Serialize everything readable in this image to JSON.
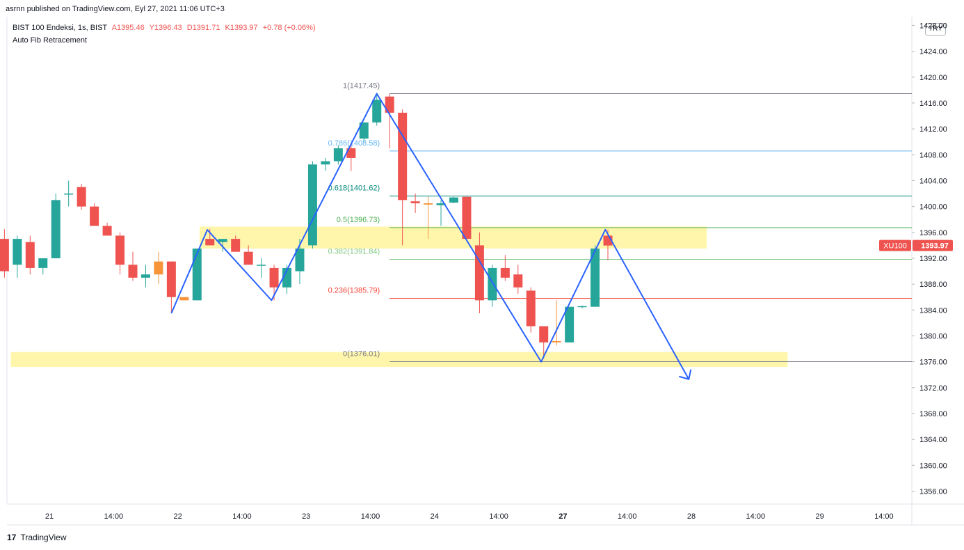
{
  "header": {
    "published": "asrnn published on TradingView.com, Eyl 27, 2021 11:06 UTC+3",
    "symbol": "BIST 100 Endeksi, 1s, BIST",
    "open": "A1395.46",
    "high": "Y1396.43",
    "low": "D1391.71",
    "close": "K1393.97",
    "change": "+0.78 (+0.06%)",
    "indicator": "Auto Fib Retracement",
    "currency": "TRY"
  },
  "footer": {
    "logo_glyph": "17",
    "brand": "TradingView"
  },
  "colors": {
    "up": "#26a69a",
    "down": "#ef5350",
    "orange": "#f7943a",
    "zone": "#fff59d",
    "drawing": "#2962ff",
    "price_label": "#ef5350"
  },
  "chart_data": {
    "type": "candlestick",
    "ylim": [
      1352.5,
      1428.0
    ],
    "yticks": [
      "1428.00",
      "1424.00",
      "1420.00",
      "1416.00",
      "1412.00",
      "1408.00",
      "1404.00",
      "1400.00",
      "1396.00",
      "1392.00",
      "1388.00",
      "1384.00",
      "1380.00",
      "1376.00",
      "1372.00",
      "1368.00",
      "1364.00",
      "1360.00",
      "1356.00"
    ],
    "xticks": [
      "21",
      "14:00",
      "22",
      "14:00",
      "23",
      "14:00",
      "24",
      "14:00",
      "27",
      "14:00",
      "28",
      "14:00",
      "29",
      "14:00"
    ],
    "xtick_bars": [
      0,
      5,
      10,
      15,
      20,
      25,
      30,
      35,
      40,
      45,
      50,
      55,
      60,
      65
    ],
    "last_price": {
      "symbol": "XU100",
      "value": "1393.97"
    },
    "candles": [
      [
        -3.5,
        1395.0,
        1396.5,
        1389.0,
        1390.0
      ],
      [
        -2.5,
        1391.0,
        1395.5,
        1389.0,
        1395.0
      ],
      [
        -1.5,
        1394.5,
        1395.5,
        1389.5,
        1390.5
      ],
      [
        -0.5,
        1390.5,
        1392.0,
        1389.5,
        1392.0
      ],
      [
        0.5,
        1392.0,
        1402.0,
        1392.0,
        1401.0
      ],
      [
        1.5,
        1402.0,
        1404.0,
        1400.0,
        1402.0
      ],
      [
        2.5,
        1403.0,
        1403.5,
        1399.5,
        1400.0
      ],
      [
        3.5,
        1400.0,
        1400.5,
        1397.0,
        1397.0
      ],
      [
        4.5,
        1397.0,
        1397.5,
        1395.5,
        1395.5
      ],
      [
        5.5,
        1395.5,
        1396.0,
        1389.5,
        1391.0
      ],
      [
        6.5,
        1391.0,
        1393.0,
        1388.5,
        1389.0
      ],
      [
        7.5,
        1389.0,
        1391.0,
        1387.5,
        1389.5
      ],
      [
        8.5,
        1389.5,
        1393.0,
        1388.0,
        1391.5
      ],
      [
        9.5,
        1391.5,
        1391.5,
        1383.5,
        1386.0
      ],
      [
        10.5,
        1386.0,
        1386.0,
        1385.5,
        1385.5
      ],
      [
        11.5,
        1385.5,
        1393.5,
        1385.5,
        1393.5
      ],
      [
        12.5,
        1395.0,
        1396.5,
        1394.0,
        1394.0
      ],
      [
        13.5,
        1394.5,
        1395.0,
        1393.0,
        1395.0
      ],
      [
        14.5,
        1395.0,
        1395.5,
        1393.0,
        1393.0
      ],
      [
        15.5,
        1393.0,
        1394.0,
        1391.0,
        1391.0
      ],
      [
        16.5,
        1391.0,
        1392.0,
        1389.0,
        1391.0
      ],
      [
        17.5,
        1390.5,
        1391.0,
        1385.5,
        1387.5
      ],
      [
        18.5,
        1387.5,
        1391.0,
        1386.5,
        1390.5
      ],
      [
        19.5,
        1390.0,
        1395.0,
        1388.0,
        1393.5
      ],
      [
        20.5,
        1394.0,
        1407.0,
        1393.5,
        1406.5
      ],
      [
        21.5,
        1406.5,
        1407.5,
        1405.5,
        1407.0
      ],
      [
        22.5,
        1407.0,
        1409.5,
        1406.5,
        1409.0
      ],
      [
        23.5,
        1409.0,
        1409.5,
        1405.5,
        1407.5
      ],
      [
        24.5,
        1410.5,
        1413.0,
        1410.0,
        1413.0
      ],
      [
        25.5,
        1413.0,
        1417.45,
        1412.5,
        1416.5
      ],
      [
        26.5,
        1417.0,
        1417.45,
        1409.0,
        1414.5
      ],
      [
        27.5,
        1414.5,
        1415.0,
        1394.0,
        1401.0
      ],
      [
        28.5,
        1400.8,
        1402.0,
        1399.0,
        1400.5
      ],
      [
        29.5,
        1400.5,
        1401.5,
        1395.0,
        1400.3
      ],
      [
        30.5,
        1400.2,
        1401.0,
        1397.0,
        1400.5
      ],
      [
        31.5,
        1400.6,
        1401.5,
        1400.5,
        1401.4
      ],
      [
        32.5,
        1401.5,
        1401.5,
        1395.0,
        1395.0
      ],
      [
        33.5,
        1394.0,
        1396.0,
        1383.5,
        1385.5
      ],
      [
        34.5,
        1385.5,
        1391.0,
        1384.5,
        1390.5
      ],
      [
        35.5,
        1390.5,
        1392.5,
        1388.5,
        1389.0
      ],
      [
        36.5,
        1389.5,
        1391.0,
        1386.5,
        1387.5
      ],
      [
        37.5,
        1387.0,
        1387.5,
        1380.5,
        1381.5
      ],
      [
        38.5,
        1381.5,
        1381.5,
        1376.5,
        1379.0
      ],
      [
        39.5,
        1379.0,
        1385.5,
        1378.5,
        1379.2
      ],
      [
        40.5,
        1379.0,
        1384.5,
        1379.0,
        1384.5
      ],
      [
        41.5,
        1384.5,
        1384.7,
        1384.3,
        1384.6
      ],
      [
        42.5,
        1384.5,
        1394.0,
        1384.5,
        1393.5
      ],
      [
        43.5,
        1395.5,
        1396.43,
        1391.71,
        1393.97
      ]
    ],
    "orange_bars": [
      12,
      14,
      33,
      43
    ],
    "fib_levels": [
      {
        "label": "1(1417.45)",
        "value": 1417.45,
        "color": "#787b86"
      },
      {
        "label": "0.786(1408.58)",
        "value": 1408.58,
        "color": "#64b5f6"
      },
      {
        "label": "0.618(1401.62)",
        "value": 1401.62,
        "color": "#00897b"
      },
      {
        "label": "0.5(1396.73)",
        "value": 1396.73,
        "color": "#4caf50"
      },
      {
        "label": "0.382(1391.84)",
        "value": 1391.84,
        "color": "#81c784"
      },
      {
        "label": "0.236(1385.79)",
        "value": 1385.79,
        "color": "#f44336"
      },
      {
        "label": "0(1376.01)",
        "value": 1376.01,
        "color": "#787b86"
      }
    ],
    "zones": [
      {
        "bar_start": 11.7,
        "bar_end": 51.2,
        "top": 1396.9,
        "bottom": 1393.5
      },
      {
        "bar_start": -3.0,
        "bar_end": 57.5,
        "top": 1377.5,
        "bottom": 1375.2
      }
    ],
    "zigzag": [
      [
        9.5,
        1383.5
      ],
      [
        12.3,
        1396.4
      ],
      [
        17.3,
        1385.5
      ],
      [
        25.5,
        1417.45
      ],
      [
        38.3,
        1376.0
      ],
      [
        43.3,
        1396.43
      ],
      [
        49.8,
        1373.3
      ]
    ]
  }
}
